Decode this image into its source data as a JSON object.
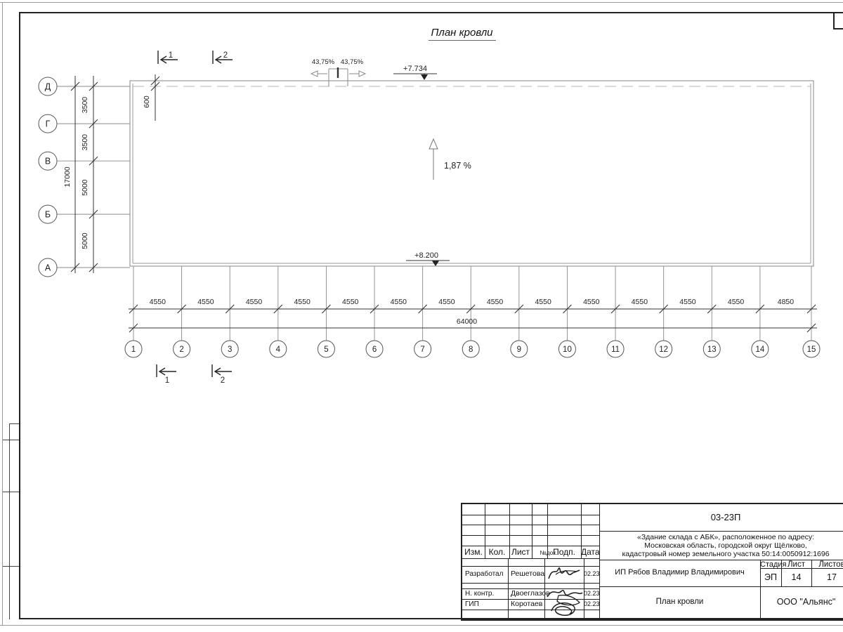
{
  "drawing": {
    "title": "План кровли",
    "slope": "1,87 %",
    "elevation_ridge": "+7.734",
    "elevation_eave": "+8.200",
    "parapet_slopes": [
      "43,75%",
      "43,75%"
    ],
    "overhang": "600",
    "section_marks": [
      "1",
      "2"
    ]
  },
  "axes": {
    "cols": [
      "1",
      "2",
      "3",
      "4",
      "5",
      "6",
      "7",
      "8",
      "9",
      "10",
      "11",
      "12",
      "13",
      "14",
      "15"
    ],
    "rows": [
      "Д",
      "Г",
      "В",
      "Б",
      "А"
    ],
    "col_dims": [
      "4550",
      "4550",
      "4550",
      "4550",
      "4550",
      "4550",
      "4550",
      "4550",
      "4550",
      "4550",
      "4550",
      "4550",
      "4550",
      "4850"
    ],
    "col_total": "64000",
    "row_dims": [
      "3500",
      "3500",
      "5000",
      "5000"
    ],
    "row_total": "17000"
  },
  "titleblock": {
    "doc_number": "03-23П",
    "project_lines": [
      "«Здание склада с АБК», расположенное по адресу:",
      "Московская область, городской округ Щёлково,",
      "кадастровый номер земельного участка 50:14:0050912:1696"
    ],
    "header": [
      "Изм.",
      "Кол.",
      "Лист",
      "№док.",
      "Подп.",
      "Дата"
    ],
    "signers": [
      {
        "role": "Разработал",
        "name": "Решетова",
        "date": "02.23"
      },
      {
        "role": "Н. контр.",
        "name": "Двоеглазов",
        "date": "02.23"
      },
      {
        "role": "ГИП",
        "name": "Коротаев",
        "date": "02.23"
      }
    ],
    "client": "ИП Рябов Владимир Владимирович",
    "stage_label": "Стадия",
    "stage": "ЭП",
    "sheet_label": "Лист",
    "sheet_no": "14",
    "sheets_label": "Листов",
    "sheets_total": "17",
    "drawing_name": "План кровли",
    "company": "ООО \"Альянс\""
  }
}
